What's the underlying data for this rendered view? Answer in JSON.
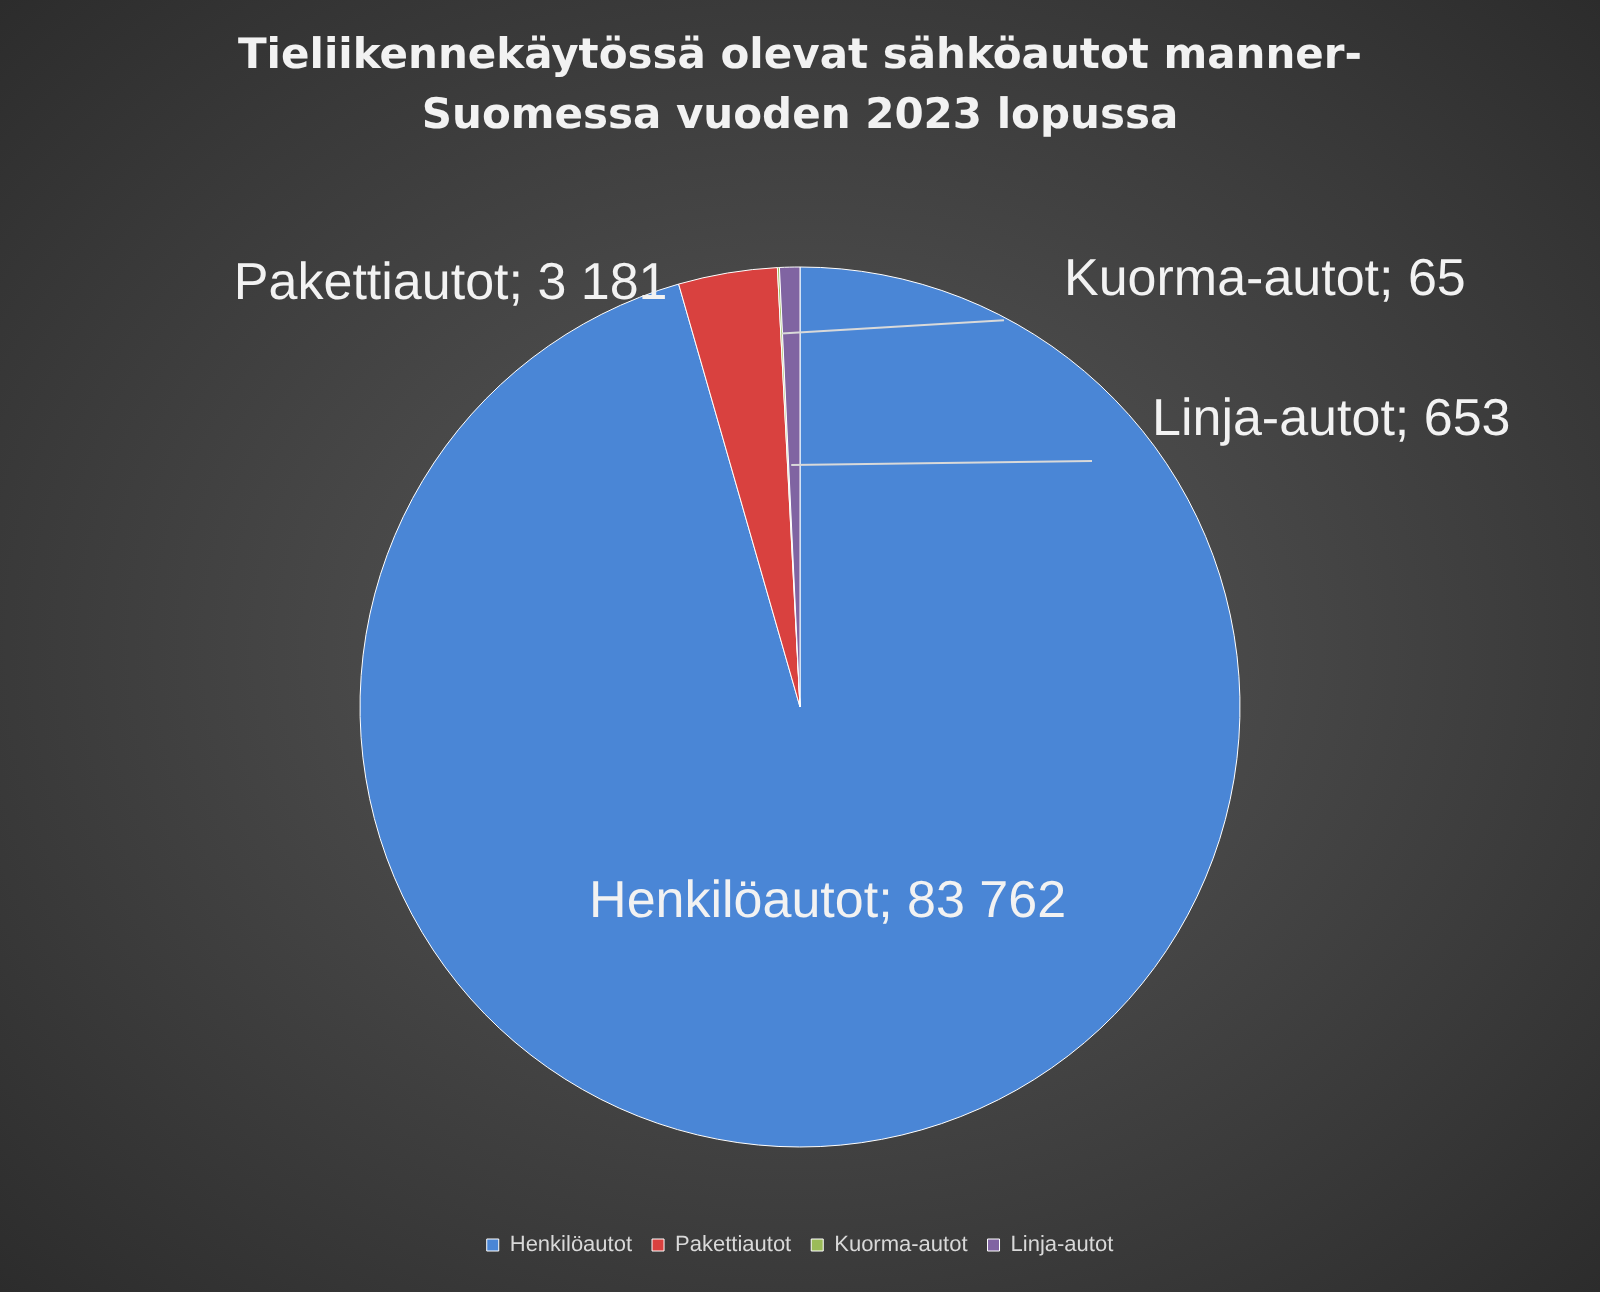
{
  "chart_data": {
    "type": "pie",
    "title": "Tieliikennekäytössä olevat sähköautot manner-Suomessa vuoden 2023 lopussa",
    "categories": [
      "Henkilöautot",
      "Pakettiautot",
      "Kuorma-autot",
      "Linja-autot"
    ],
    "values": [
      83762,
      3181,
      65,
      653
    ],
    "value_labels": [
      "Henkilöautot; 83 762",
      "Pakettiautot; 3 181",
      "Kuorma-autot; 65",
      "Linja-autot; 653"
    ],
    "colors": [
      "#4a86d6",
      "#d9413f",
      "#9bbb59",
      "#8064a2"
    ],
    "legend": "bottom"
  }
}
